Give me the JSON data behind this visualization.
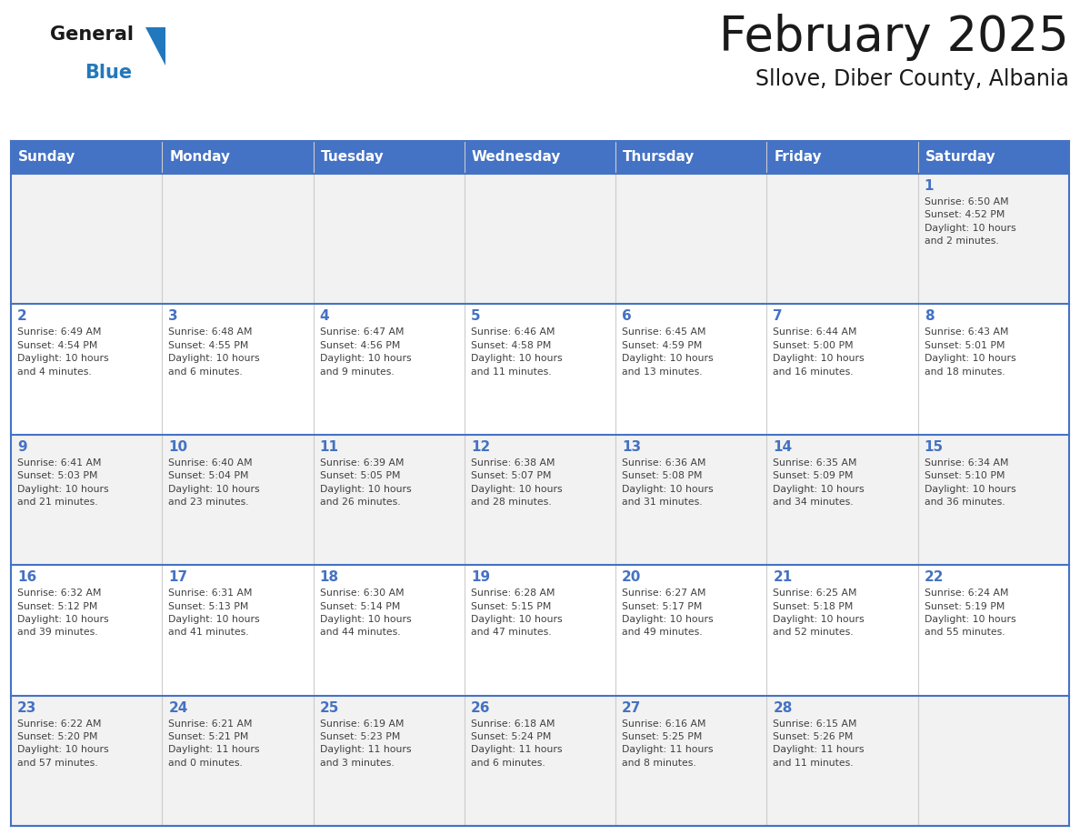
{
  "title": "February 2025",
  "subtitle": "Sllove, Diber County, Albania",
  "header_bg": "#4472C4",
  "header_text": "#FFFFFF",
  "header_days": [
    "Sunday",
    "Monday",
    "Tuesday",
    "Wednesday",
    "Thursday",
    "Friday",
    "Saturday"
  ],
  "row_bg_light": "#F2F2F2",
  "row_bg_white": "#FFFFFF",
  "cell_border_color": "#4472C4",
  "day_number_color": "#4472C4",
  "info_text_color": "#404040",
  "logo_general_color": "#1a1a1a",
  "logo_blue_color": "#2278BD",
  "logo_triangle_color": "#2278BD",
  "calendar_data": [
    [
      null,
      null,
      null,
      null,
      null,
      null,
      1
    ],
    [
      2,
      3,
      4,
      5,
      6,
      7,
      8
    ],
    [
      9,
      10,
      11,
      12,
      13,
      14,
      15
    ],
    [
      16,
      17,
      18,
      19,
      20,
      21,
      22
    ],
    [
      23,
      24,
      25,
      26,
      27,
      28,
      null
    ]
  ],
  "sunrise_data": {
    "1": "Sunrise: 6:50 AM\nSunset: 4:52 PM\nDaylight: 10 hours\nand 2 minutes.",
    "2": "Sunrise: 6:49 AM\nSunset: 4:54 PM\nDaylight: 10 hours\nand 4 minutes.",
    "3": "Sunrise: 6:48 AM\nSunset: 4:55 PM\nDaylight: 10 hours\nand 6 minutes.",
    "4": "Sunrise: 6:47 AM\nSunset: 4:56 PM\nDaylight: 10 hours\nand 9 minutes.",
    "5": "Sunrise: 6:46 AM\nSunset: 4:58 PM\nDaylight: 10 hours\nand 11 minutes.",
    "6": "Sunrise: 6:45 AM\nSunset: 4:59 PM\nDaylight: 10 hours\nand 13 minutes.",
    "7": "Sunrise: 6:44 AM\nSunset: 5:00 PM\nDaylight: 10 hours\nand 16 minutes.",
    "8": "Sunrise: 6:43 AM\nSunset: 5:01 PM\nDaylight: 10 hours\nand 18 minutes.",
    "9": "Sunrise: 6:41 AM\nSunset: 5:03 PM\nDaylight: 10 hours\nand 21 minutes.",
    "10": "Sunrise: 6:40 AM\nSunset: 5:04 PM\nDaylight: 10 hours\nand 23 minutes.",
    "11": "Sunrise: 6:39 AM\nSunset: 5:05 PM\nDaylight: 10 hours\nand 26 minutes.",
    "12": "Sunrise: 6:38 AM\nSunset: 5:07 PM\nDaylight: 10 hours\nand 28 minutes.",
    "13": "Sunrise: 6:36 AM\nSunset: 5:08 PM\nDaylight: 10 hours\nand 31 minutes.",
    "14": "Sunrise: 6:35 AM\nSunset: 5:09 PM\nDaylight: 10 hours\nand 34 minutes.",
    "15": "Sunrise: 6:34 AM\nSunset: 5:10 PM\nDaylight: 10 hours\nand 36 minutes.",
    "16": "Sunrise: 6:32 AM\nSunset: 5:12 PM\nDaylight: 10 hours\nand 39 minutes.",
    "17": "Sunrise: 6:31 AM\nSunset: 5:13 PM\nDaylight: 10 hours\nand 41 minutes.",
    "18": "Sunrise: 6:30 AM\nSunset: 5:14 PM\nDaylight: 10 hours\nand 44 minutes.",
    "19": "Sunrise: 6:28 AM\nSunset: 5:15 PM\nDaylight: 10 hours\nand 47 minutes.",
    "20": "Sunrise: 6:27 AM\nSunset: 5:17 PM\nDaylight: 10 hours\nand 49 minutes.",
    "21": "Sunrise: 6:25 AM\nSunset: 5:18 PM\nDaylight: 10 hours\nand 52 minutes.",
    "22": "Sunrise: 6:24 AM\nSunset: 5:19 PM\nDaylight: 10 hours\nand 55 minutes.",
    "23": "Sunrise: 6:22 AM\nSunset: 5:20 PM\nDaylight: 10 hours\nand 57 minutes.",
    "24": "Sunrise: 6:21 AM\nSunset: 5:21 PM\nDaylight: 11 hours\nand 0 minutes.",
    "25": "Sunrise: 6:19 AM\nSunset: 5:23 PM\nDaylight: 11 hours\nand 3 minutes.",
    "26": "Sunrise: 6:18 AM\nSunset: 5:24 PM\nDaylight: 11 hours\nand 6 minutes.",
    "27": "Sunrise: 6:16 AM\nSunset: 5:25 PM\nDaylight: 11 hours\nand 8 minutes.",
    "28": "Sunrise: 6:15 AM\nSunset: 5:26 PM\nDaylight: 11 hours\nand 11 minutes."
  }
}
